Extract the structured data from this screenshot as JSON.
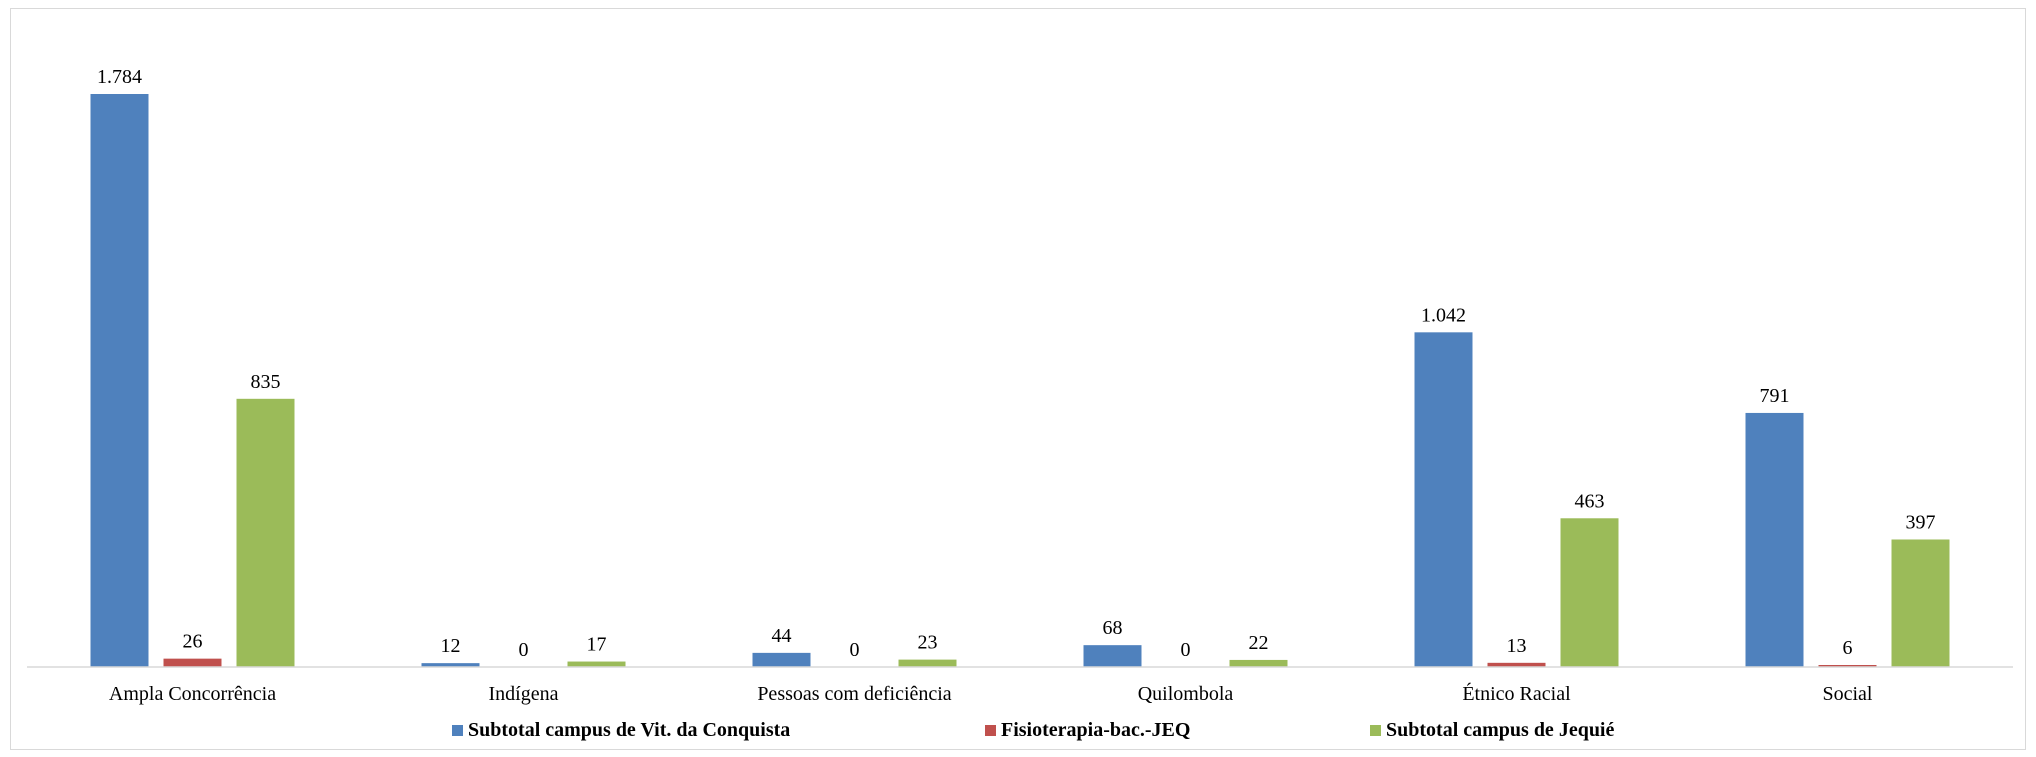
{
  "chart_data": {
    "type": "bar",
    "categories": [
      "Ampla Concorrência",
      "Indígena",
      "Pessoas com deficiência",
      "Quilombola",
      "Étnico Racial",
      "Social"
    ],
    "series": [
      {
        "name": "Subtotal campus de Vit. da Conquista",
        "color": "#4f81bd",
        "values": [
          1784,
          12,
          44,
          68,
          1042,
          791
        ],
        "labels": [
          "1.784",
          "12",
          "44",
          "68",
          "1.042",
          "791"
        ]
      },
      {
        "name": "Fisioterapia-bac.-JEQ",
        "color": "#c0504d",
        "values": [
          26,
          0,
          0,
          0,
          13,
          6
        ],
        "labels": [
          "26",
          "0",
          "0",
          "0",
          "13",
          "6"
        ]
      },
      {
        "name": "Subtotal campus de Jequié",
        "color": "#9bbb59",
        "values": [
          835,
          17,
          23,
          22,
          463,
          397
        ],
        "labels": [
          "835",
          "17",
          "23",
          "22",
          "463",
          "397"
        ]
      }
    ],
    "ylim": [
      0,
      1800
    ],
    "grid": false,
    "legend_position": "bottom",
    "title": "",
    "xlabel": "",
    "ylabel": ""
  }
}
